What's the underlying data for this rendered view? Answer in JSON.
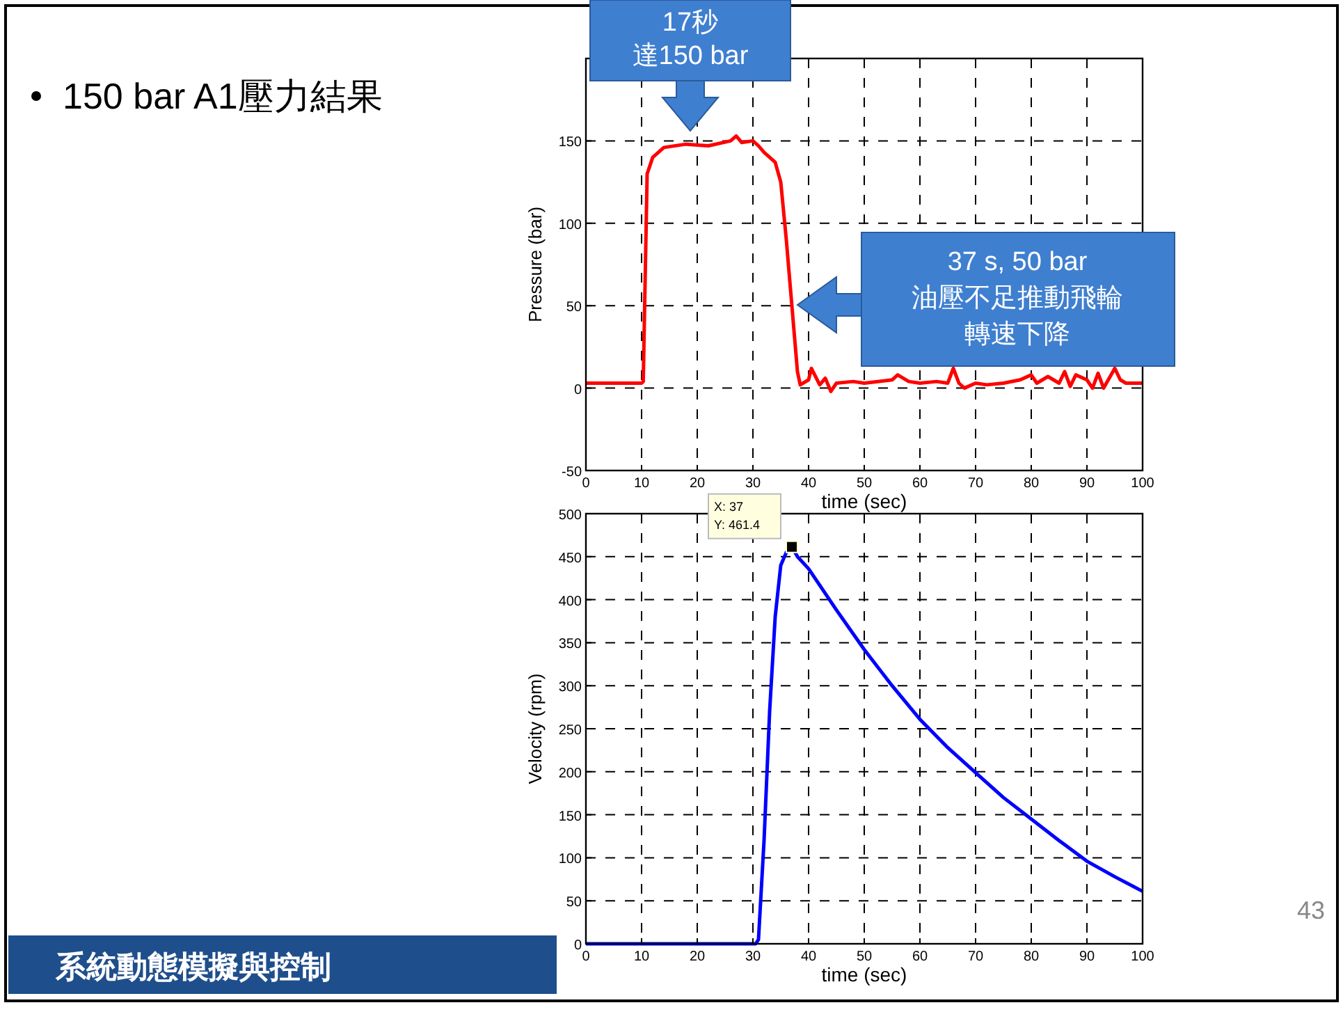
{
  "chart_data": [
    {
      "type": "line",
      "title": "150 bar A1壓力結果",
      "xlabel": "time (sec)",
      "ylabel": "Pressure (bar)",
      "xlim": [
        0,
        100
      ],
      "ylim": [
        -50,
        200
      ],
      "xticks": [
        0,
        10,
        20,
        30,
        40,
        50,
        60,
        70,
        80,
        90,
        100
      ],
      "yticks": [
        -50,
        0,
        50,
        100,
        150
      ],
      "grid": true,
      "series": [
        {
          "color": "#ff0000",
          "x": [
            0,
            5,
            10,
            10.3,
            11,
            12,
            14,
            18,
            22,
            26,
            27,
            28,
            30,
            31,
            32,
            34,
            35,
            36,
            37,
            38,
            38.5,
            40,
            40.5,
            42,
            43,
            44,
            45,
            48,
            50,
            55,
            56,
            58,
            60,
            63,
            65,
            66,
            67,
            68,
            70,
            72,
            75,
            78,
            80,
            81,
            83,
            85,
            86,
            87,
            88,
            90,
            91,
            92,
            93,
            95,
            96,
            97,
            100
          ],
          "values": [
            3,
            3,
            3,
            4,
            130,
            140,
            146,
            148,
            147,
            150,
            153,
            149,
            150,
            147,
            143,
            137,
            125,
            90,
            50,
            10,
            2,
            5,
            12,
            2,
            6,
            -2,
            3,
            4,
            3,
            5,
            8,
            4,
            3,
            4,
            3,
            12,
            3,
            0,
            3,
            2,
            3,
            5,
            8,
            3,
            7,
            3,
            10,
            1,
            8,
            5,
            0,
            9,
            0,
            12,
            5,
            3,
            3
          ]
        }
      ],
      "annotations": [
        "17秒達150 bar",
        "37 s, 50 bar油壓不足推動飛輪轉速下降"
      ]
    },
    {
      "type": "line",
      "xlabel": "time (sec)",
      "ylabel": "Velocity (rpm)",
      "xlim": [
        0,
        100
      ],
      "ylim": [
        0,
        500
      ],
      "xticks": [
        0,
        10,
        20,
        30,
        40,
        50,
        60,
        70,
        80,
        90,
        100
      ],
      "yticks": [
        0,
        50,
        100,
        150,
        200,
        250,
        300,
        350,
        400,
        450,
        500
      ],
      "grid": true,
      "series": [
        {
          "color": "#0000ff",
          "x": [
            0,
            30.5,
            31,
            32,
            33,
            34,
            35,
            36,
            37,
            38,
            40,
            45,
            50,
            55,
            60,
            65,
            70,
            75,
            80,
            85,
            90,
            95,
            100
          ],
          "values": [
            0,
            0,
            5,
            120,
            270,
            380,
            440,
            455,
            461.4,
            450,
            436,
            388,
            342,
            300,
            261,
            228,
            199,
            170,
            145,
            120,
            96,
            78,
            61
          ]
        },
        {
          "type": "scatter",
          "marker": "square",
          "color": "#000000",
          "x": [
            37
          ],
          "values": [
            461.4
          ]
        }
      ],
      "annotations": [
        {
          "text": "X: 37\nY: 461.4",
          "x": 37,
          "y": 461.4
        },
        "系統動態模擬與控制",
        "43"
      ]
    }
  ]
}
